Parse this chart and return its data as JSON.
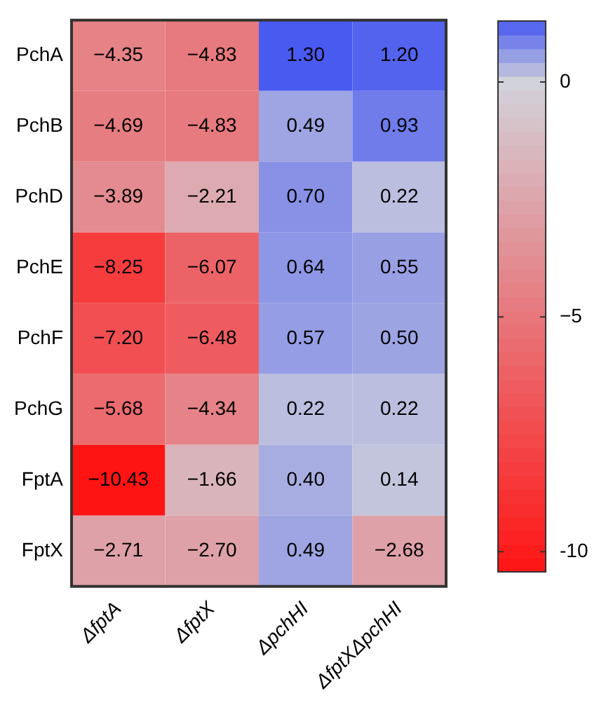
{
  "chart_data": {
    "type": "heatmap",
    "categories": [
      "ΔfptA",
      "ΔfptX",
      "ΔpchHI",
      "ΔfptXΔpchHI"
    ],
    "y_categories": [
      "PchA",
      "PchB",
      "PchD",
      "PchE",
      "PchF",
      "PchG",
      "FptA",
      "FptX"
    ],
    "cells": [
      [
        -4.35,
        -4.83,
        1.3,
        1.2
      ],
      [
        -4.69,
        -4.83,
        0.49,
        0.93
      ],
      [
        -3.89,
        -2.21,
        0.7,
        0.22
      ],
      [
        -8.25,
        -6.07,
        0.64,
        0.55
      ],
      [
        -7.2,
        -6.48,
        0.57,
        0.5
      ],
      [
        -5.68,
        -4.34,
        0.22,
        0.22
      ],
      [
        -10.43,
        -1.66,
        0.4,
        0.14
      ],
      [
        -2.71,
        -2.7,
        0.49,
        -2.68
      ]
    ],
    "cell_labels": [
      [
        "−4.35",
        "−4.83",
        "1.30",
        "1.20"
      ],
      [
        "−4.69",
        "−4.83",
        "0.49",
        "0.93"
      ],
      [
        "−3.89",
        "−2.21",
        "0.70",
        "0.22"
      ],
      [
        "−8.25",
        "−6.07",
        "0.64",
        "0.55"
      ],
      [
        "−7.20",
        "−6.48",
        "0.57",
        "0.50"
      ],
      [
        "−5.68",
        "−4.34",
        "0.22",
        "0.22"
      ],
      [
        "−10.43",
        "−1.66",
        "0.40",
        "0.14"
      ],
      [
        "−2.71",
        "−2.70",
        "0.49",
        "−2.68"
      ]
    ],
    "clim": [
      -10.43,
      1.3
    ],
    "cticks": [
      {
        "value": 0,
        "label": "0"
      },
      {
        "value": -5,
        "label": "−5"
      },
      {
        "value": -10,
        "label": "-10"
      }
    ]
  }
}
